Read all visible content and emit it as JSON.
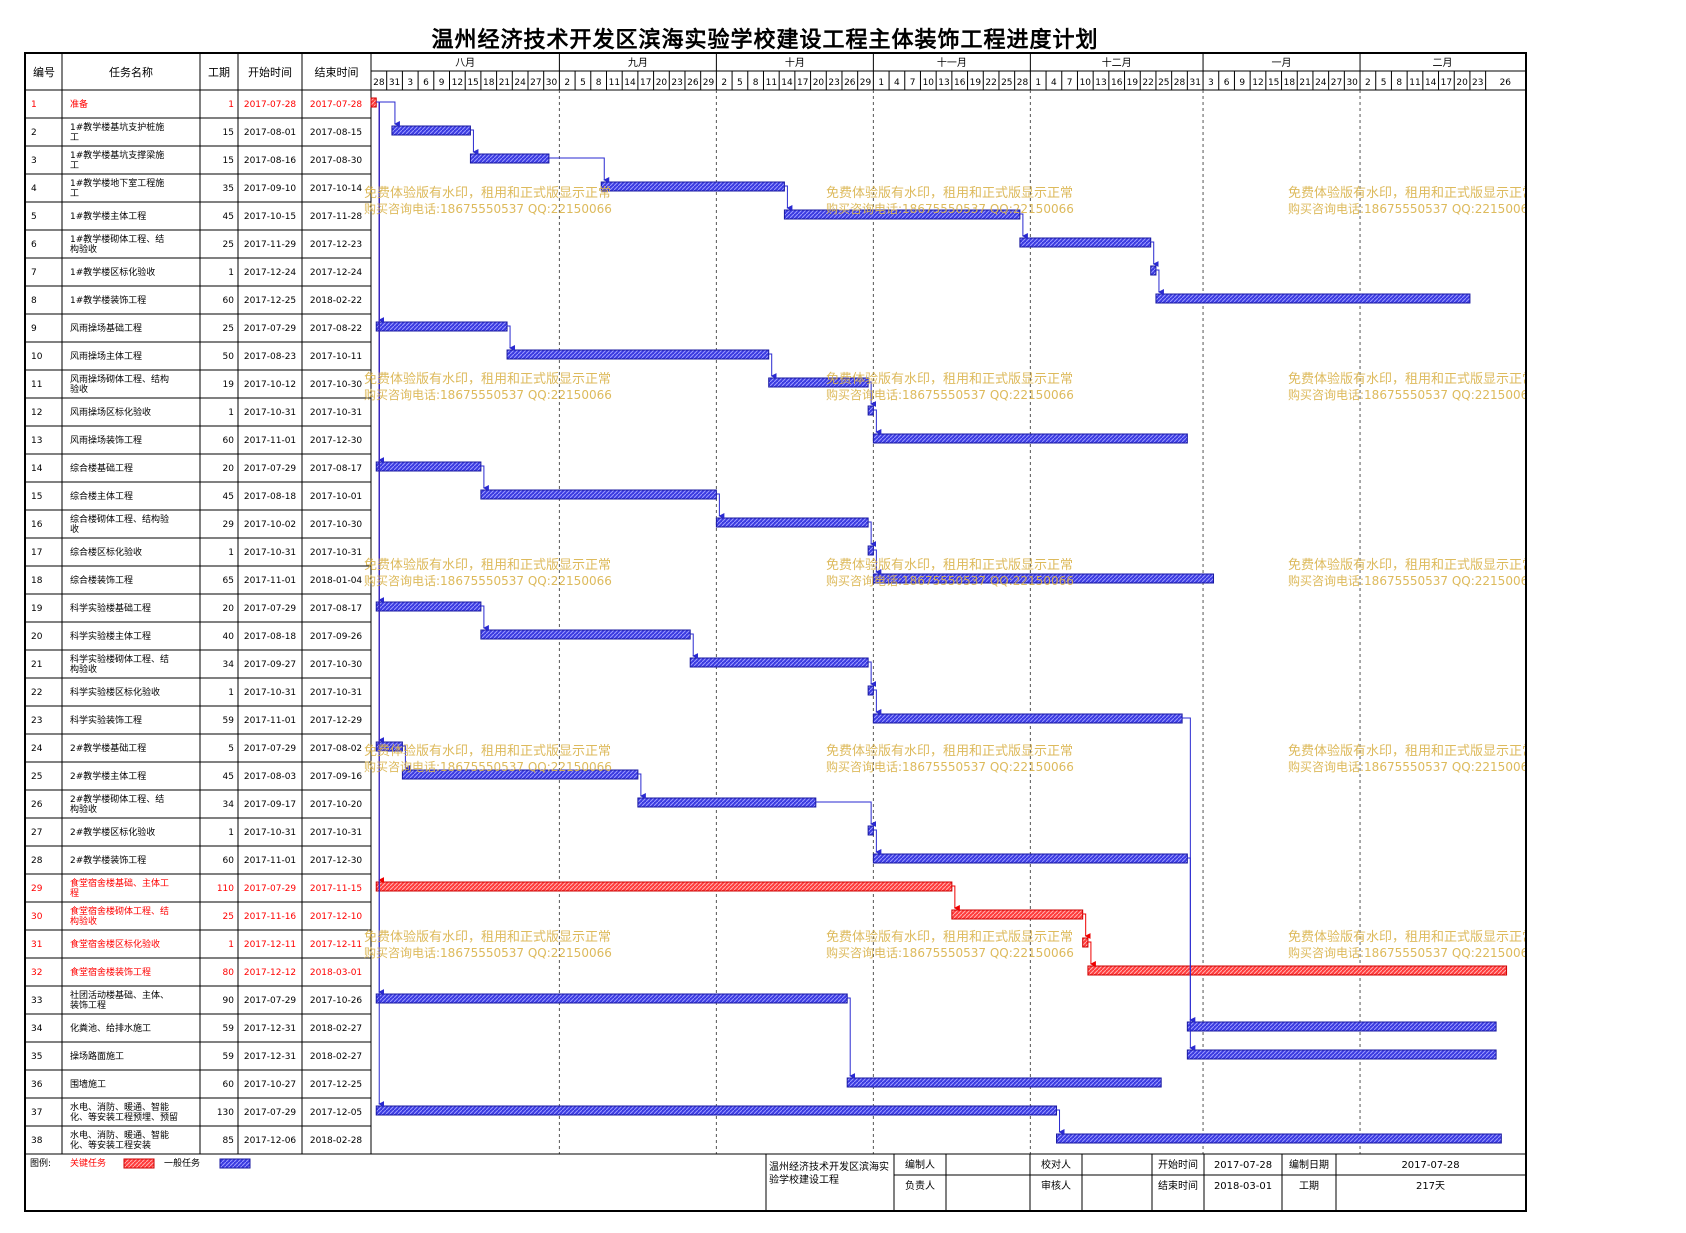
{
  "title": "温州经济技术开发区滨海实验学校建设工程主体装饰工程进度计划",
  "header": {
    "id": "编号",
    "name": "任务名称",
    "duration": "工期",
    "start": "开始时间",
    "end": "结束时间"
  },
  "months": [
    {
      "label": "八月",
      "days": [
        "28",
        "31",
        "3",
        "6",
        "9",
        "12",
        "15",
        "18",
        "21",
        "24",
        "27",
        "30"
      ]
    },
    {
      "label": "九月",
      "days": [
        "2",
        "5",
        "8",
        "11",
        "14",
        "17",
        "20",
        "23",
        "26",
        "29"
      ]
    },
    {
      "label": "十月",
      "days": [
        "2",
        "5",
        "8",
        "11",
        "14",
        "17",
        "20",
        "23",
        "26",
        "29"
      ]
    },
    {
      "label": "十一月",
      "days": [
        "1",
        "4",
        "7",
        "10",
        "13",
        "16",
        "19",
        "22",
        "25",
        "28"
      ]
    },
    {
      "label": "十二月",
      "days": [
        "1",
        "4",
        "7",
        "10",
        "13",
        "16",
        "19",
        "22",
        "25",
        "28",
        "31"
      ]
    },
    {
      "label": "一月",
      "days": [
        "3",
        "6",
        "9",
        "12",
        "15",
        "18",
        "21",
        "24",
        "27",
        "30"
      ]
    },
    {
      "label": "二月",
      "days": [
        "2",
        "5",
        "8",
        "11",
        "14",
        "17",
        "20",
        "23",
        "26"
      ]
    }
  ],
  "watermark": {
    "line1": "免费体验版有水印，租用和正式版显示正常",
    "line2": "购买咨询电话:18675550537 QQ:22150066"
  },
  "colors": {
    "critical": "#ff3b3b",
    "normal": "#3a3ae0",
    "critical_text": "#ff0000",
    "watermark": "#d9b24a"
  },
  "chart_data": {
    "type": "gantt",
    "title": "温州经济技术开发区滨海实验学校建设工程主体装饰工程进度计划",
    "tasks": [
      {
        "id": "1",
        "name": "准备",
        "duration": "1",
        "start": "2017-07-28",
        "end": "2017-07-28",
        "critical": true
      },
      {
        "id": "2",
        "name": "1#教学楼基坑支护桩施工",
        "duration": "15",
        "start": "2017-08-01",
        "end": "2017-08-15",
        "critical": false
      },
      {
        "id": "3",
        "name": "1#教学楼基坑支撑梁施工",
        "duration": "15",
        "start": "2017-08-16",
        "end": "2017-08-30",
        "critical": false
      },
      {
        "id": "4",
        "name": "1#教学楼地下室工程施工",
        "duration": "35",
        "start": "2017-09-10",
        "end": "2017-10-14",
        "critical": false
      },
      {
        "id": "5",
        "name": "1#教学楼主体工程",
        "duration": "45",
        "start": "2017-10-15",
        "end": "2017-11-28",
        "critical": false
      },
      {
        "id": "6",
        "name": "1#教学楼砌体工程、结构验收",
        "duration": "25",
        "start": "2017-11-29",
        "end": "2017-12-23",
        "critical": false
      },
      {
        "id": "7",
        "name": "1#教学楼区标化验收",
        "duration": "1",
        "start": "2017-12-24",
        "end": "2017-12-24",
        "critical": false
      },
      {
        "id": "8",
        "name": "1#教学楼装饰工程",
        "duration": "60",
        "start": "2017-12-25",
        "end": "2018-02-22",
        "critical": false
      },
      {
        "id": "9",
        "name": "风雨操场基础工程",
        "duration": "25",
        "start": "2017-07-29",
        "end": "2017-08-22",
        "critical": false
      },
      {
        "id": "10",
        "name": "风雨操场主体工程",
        "duration": "50",
        "start": "2017-08-23",
        "end": "2017-10-11",
        "critical": false
      },
      {
        "id": "11",
        "name": "风雨操场砌体工程、结构验收",
        "duration": "19",
        "start": "2017-10-12",
        "end": "2017-10-30",
        "critical": false
      },
      {
        "id": "12",
        "name": "风雨操场区标化验收",
        "duration": "1",
        "start": "2017-10-31",
        "end": "2017-10-31",
        "critical": false
      },
      {
        "id": "13",
        "name": "风雨操场装饰工程",
        "duration": "60",
        "start": "2017-11-01",
        "end": "2017-12-30",
        "critical": false
      },
      {
        "id": "14",
        "name": "综合楼基础工程",
        "duration": "20",
        "start": "2017-07-29",
        "end": "2017-08-17",
        "critical": false
      },
      {
        "id": "15",
        "name": "综合楼主体工程",
        "duration": "45",
        "start": "2017-08-18",
        "end": "2017-10-01",
        "critical": false
      },
      {
        "id": "16",
        "name": "综合楼砌体工程、结构验收",
        "duration": "29",
        "start": "2017-10-02",
        "end": "2017-10-30",
        "critical": false
      },
      {
        "id": "17",
        "name": "综合楼区标化验收",
        "duration": "1",
        "start": "2017-10-31",
        "end": "2017-10-31",
        "critical": false
      },
      {
        "id": "18",
        "name": "综合楼装饰工程",
        "duration": "65",
        "start": "2017-11-01",
        "end": "2018-01-04",
        "critical": false
      },
      {
        "id": "19",
        "name": "科学实验楼基础工程",
        "duration": "20",
        "start": "2017-07-29",
        "end": "2017-08-17",
        "critical": false
      },
      {
        "id": "20",
        "name": "科学实验楼主体工程",
        "duration": "40",
        "start": "2017-08-18",
        "end": "2017-09-26",
        "critical": false
      },
      {
        "id": "21",
        "name": "科学实验楼砌体工程、结构验收",
        "duration": "34",
        "start": "2017-09-27",
        "end": "2017-10-30",
        "critical": false
      },
      {
        "id": "22",
        "name": "科学实验楼区标化验收",
        "duration": "1",
        "start": "2017-10-31",
        "end": "2017-10-31",
        "critical": false
      },
      {
        "id": "23",
        "name": "科学实验装饰工程",
        "duration": "59",
        "start": "2017-11-01",
        "end": "2017-12-29",
        "critical": false
      },
      {
        "id": "24",
        "name": "2#教学楼基础工程",
        "duration": "5",
        "start": "2017-07-29",
        "end": "2017-08-02",
        "critical": false
      },
      {
        "id": "25",
        "name": "2#教学楼主体工程",
        "duration": "45",
        "start": "2017-08-03",
        "end": "2017-09-16",
        "critical": false
      },
      {
        "id": "26",
        "name": "2#教学楼砌体工程、结构验收",
        "duration": "34",
        "start": "2017-09-17",
        "end": "2017-10-20",
        "critical": false
      },
      {
        "id": "27",
        "name": "2#教学楼区标化验收",
        "duration": "1",
        "start": "2017-10-31",
        "end": "2017-10-31",
        "critical": false
      },
      {
        "id": "28",
        "name": "2#教学楼装饰工程",
        "duration": "60",
        "start": "2017-11-01",
        "end": "2017-12-30",
        "critical": false
      },
      {
        "id": "29",
        "name": "食堂宿舍楼基础、主体工程",
        "duration": "110",
        "start": "2017-07-29",
        "end": "2017-11-15",
        "critical": true
      },
      {
        "id": "30",
        "name": "食堂宿舍楼砌体工程、结构验收",
        "duration": "25",
        "start": "2017-11-16",
        "end": "2017-12-10",
        "critical": true
      },
      {
        "id": "31",
        "name": "食堂宿舍楼区标化验收",
        "duration": "1",
        "start": "2017-12-11",
        "end": "2017-12-11",
        "critical": true
      },
      {
        "id": "32",
        "name": "食堂宿舍楼装饰工程",
        "duration": "80",
        "start": "2017-12-12",
        "end": "2018-03-01",
        "critical": true
      },
      {
        "id": "33",
        "name": "社团活动楼基础、主体、装饰工程",
        "duration": "90",
        "start": "2017-07-29",
        "end": "2017-10-26",
        "critical": false
      },
      {
        "id": "34",
        "name": "化粪池、给排水施工",
        "duration": "59",
        "start": "2017-12-31",
        "end": "2018-02-27",
        "critical": false
      },
      {
        "id": "35",
        "name": "操场路面施工",
        "duration": "59",
        "start": "2017-12-31",
        "end": "2018-02-27",
        "critical": false
      },
      {
        "id": "36",
        "name": "围墙施工",
        "duration": "60",
        "start": "2017-10-27",
        "end": "2017-12-25",
        "critical": false
      },
      {
        "id": "37",
        "name": "水电、消防、暖通、智能化、等安装工程预埋、预留",
        "duration": "130",
        "start": "2017-07-29",
        "end": "2017-12-05",
        "critical": false
      },
      {
        "id": "38",
        "name": "水电、消防、暖通、智能化、等安装工程安装",
        "duration": "85",
        "start": "2017-12-06",
        "end": "2018-02-28",
        "critical": false
      }
    ],
    "x_range": [
      "2017-07-28",
      "2018-02-28"
    ]
  },
  "legend": {
    "label": "图例:",
    "critical": "关键任务",
    "normal": "一般任务"
  },
  "footer": {
    "project": "温州经济技术开发区滨海实验学校建设工程",
    "editor_label": "编制人",
    "checker_label": "校对人",
    "start_label": "开始时间",
    "start_value": "2017-07-28",
    "date_label": "编制日期",
    "date_value": "2017-07-28",
    "owner_label": "负责人",
    "auditor_label": "审核人",
    "end_label": "结束时间",
    "end_value": "2018-03-01",
    "duration_label": "工期",
    "duration_value": "217天"
  }
}
